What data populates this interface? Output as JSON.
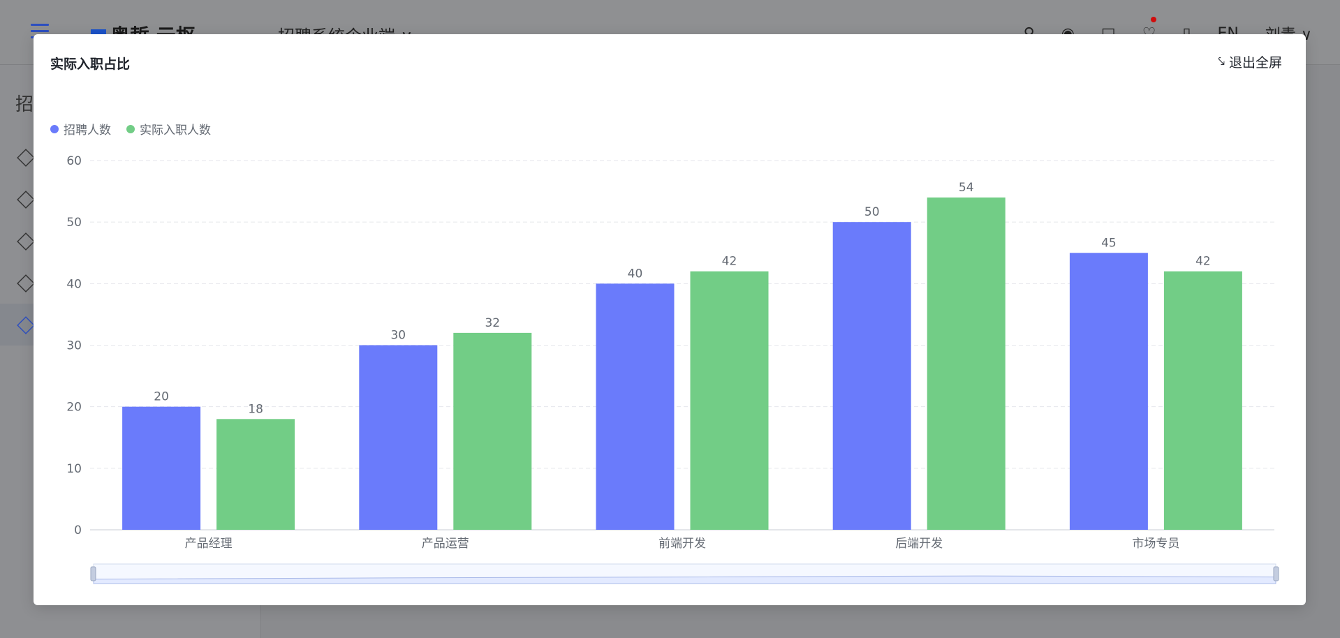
{
  "background_app": {
    "logo_text": "奥哲 云枢",
    "app_name": "招聘系统企业端 ∨",
    "lang": "EN",
    "user": "刘青 ∨",
    "sidebar_title": "招"
  },
  "modal": {
    "title": "实际入职占比",
    "exit_label": "退出全屏"
  },
  "chart_data": {
    "type": "bar",
    "categories": [
      "产品经理",
      "产品运营",
      "前端开发",
      "后端开发",
      "市场专员"
    ],
    "series": [
      {
        "name": "招聘人数",
        "values": [
          20,
          30,
          40,
          50,
          45
        ],
        "color": "#6a7bfb"
      },
      {
        "name": "实际入职人数",
        "values": [
          18,
          32,
          42,
          54,
          42
        ],
        "color": "#72cd86"
      }
    ],
    "ylim": [
      0,
      60
    ],
    "yticks": [
      "0",
      "10",
      "20",
      "30",
      "40",
      "50",
      "60"
    ],
    "grid": true,
    "legend": "top-left",
    "data_zoom": true
  }
}
